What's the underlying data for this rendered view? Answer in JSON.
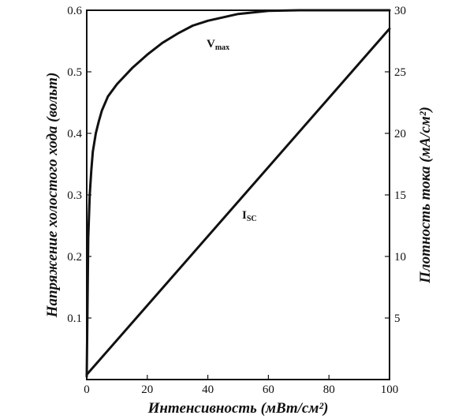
{
  "chart_data": {
    "type": "line",
    "title": "",
    "xlabel": "Интенсивность (мВт/см²)",
    "ylabel_left": "Напряжение холостого хода (вольт)",
    "ylabel_right": "Плотность тока (мА/см²)",
    "xlim": [
      0,
      100
    ],
    "ylim_left": [
      0,
      0.6
    ],
    "ylim_right": [
      0,
      30
    ],
    "x_ticks": [
      "0",
      "20",
      "40",
      "60",
      "80",
      "100"
    ],
    "y_left_ticks": [
      "0.1",
      "0.2",
      "0.3",
      "0.4",
      "0.5",
      "0.6"
    ],
    "y_right_ticks": [
      "5",
      "10",
      "15",
      "20",
      "25",
      "30"
    ],
    "grid": false,
    "series": [
      {
        "name": "Vmax",
        "axis": "left",
        "x": [
          0,
          0.5,
          1,
          1.5,
          2,
          3,
          4,
          5,
          7,
          10,
          15,
          20,
          25,
          30,
          35,
          40,
          50,
          60,
          70,
          80,
          90,
          100
        ],
        "y": [
          0.005,
          0.23,
          0.3,
          0.34,
          0.37,
          0.4,
          0.42,
          0.437,
          0.46,
          0.48,
          0.506,
          0.528,
          0.547,
          0.562,
          0.575,
          0.583,
          0.594,
          0.599,
          0.6,
          0.6,
          0.6,
          0.6
        ]
      },
      {
        "name": "ISC",
        "axis": "right",
        "x": [
          0,
          100
        ],
        "y": [
          0.4,
          28.5
        ]
      }
    ],
    "annotations": [
      {
        "main": "V",
        "sub": "max",
        "series": "Vmax"
      },
      {
        "main": "I",
        "sub": "SC",
        "series": "ISC"
      }
    ]
  }
}
